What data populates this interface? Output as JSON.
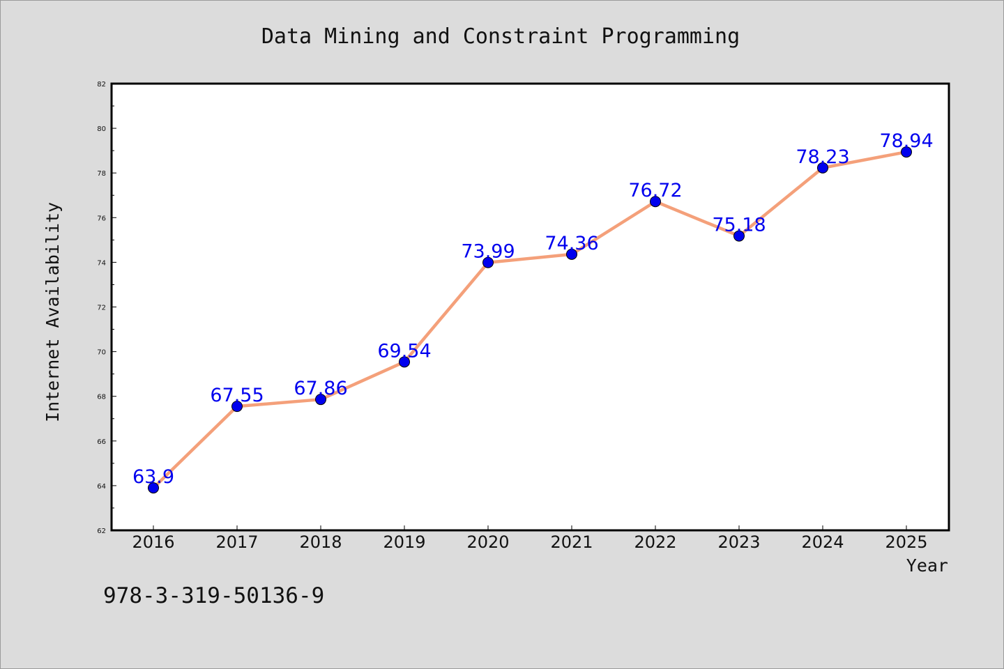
{
  "chart_data": {
    "type": "line",
    "title": "Data Mining and Constraint Programming",
    "xlabel": "Year",
    "ylabel": "Internet Availability",
    "categories": [
      "2016",
      "2017",
      "2018",
      "2019",
      "2020",
      "2021",
      "2022",
      "2023",
      "2024",
      "2025"
    ],
    "series": [
      {
        "values": [
          63.9,
          67.55,
          67.86,
          69.54,
          73.99,
          74.36,
          76.72,
          75.18,
          78.23,
          78.94
        ],
        "labels": [
          "63.9",
          "67.55",
          "67.86",
          "69.54",
          "73.99",
          "74.36",
          "76.72",
          "75.18",
          "78.23",
          "78.94"
        ],
        "line_color": "#f4a07a",
        "marker_color": "#0000ee"
      }
    ],
    "ylim": [
      62,
      82
    ],
    "yticks": [
      "62",
      "64",
      "66",
      "68",
      "70",
      "72",
      "74",
      "76",
      "78",
      "80",
      "82"
    ],
    "grid": false,
    "legend": "none"
  },
  "footer": {
    "isbn": "978-3-319-50136-9"
  }
}
